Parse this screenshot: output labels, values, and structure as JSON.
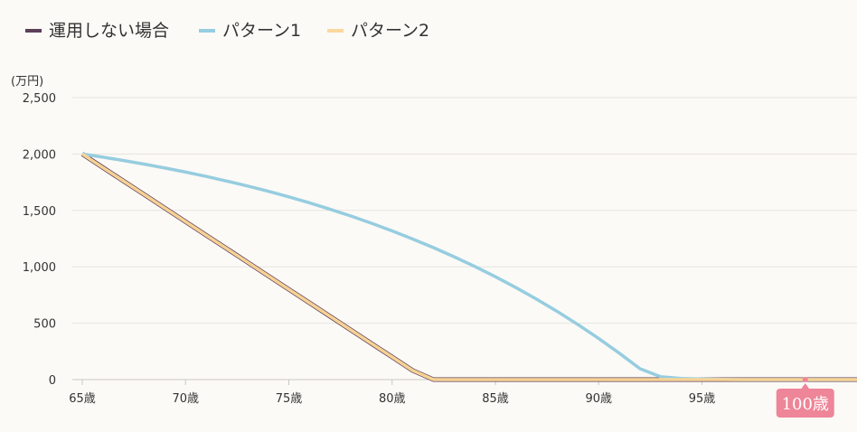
{
  "chart_data": {
    "type": "line",
    "unit_label": "(万円)",
    "x": [
      65,
      66,
      67,
      68,
      69,
      70,
      71,
      72,
      73,
      74,
      75,
      76,
      77,
      78,
      79,
      80,
      81,
      82,
      83,
      84,
      85,
      86,
      87,
      88,
      89,
      90,
      91,
      92,
      93,
      94,
      95,
      96,
      97,
      98,
      99,
      100
    ],
    "x_tick_labels": [
      "65歳",
      "70歳",
      "75歳",
      "80歳",
      "85歳",
      "90歳",
      "95歳"
    ],
    "y_ticks": [
      0,
      500,
      1000,
      1500,
      2000,
      2500
    ],
    "y_tick_labels": [
      "0",
      "500",
      "1,000",
      "1,500",
      "2,000",
      "2,500"
    ],
    "ylim": [
      0,
      2500
    ],
    "grid": true,
    "legend_position": "top-left",
    "series": [
      {
        "name": "運用しない場合",
        "color": "#5c3f58",
        "values": [
          2000,
          1880,
          1760,
          1640,
          1520,
          1400,
          1280,
          1160,
          1040,
          920,
          800,
          680,
          560,
          440,
          320,
          200,
          80,
          0,
          0,
          0,
          0,
          0,
          0,
          0,
          0,
          0,
          0,
          0,
          0,
          0,
          0,
          0,
          0,
          0,
          0,
          0
        ]
      },
      {
        "name": "パターン1",
        "color": "#96cde0",
        "values": [
          2000,
          1972,
          1942,
          1910,
          1876,
          1840,
          1801,
          1760,
          1716,
          1670,
          1620,
          1567,
          1510,
          1450,
          1386,
          1318,
          1246,
          1170,
          1089,
          1003,
          912,
          815,
          712,
          603,
          487,
          364,
          234,
          96,
          25,
          10,
          5,
          2,
          0,
          0,
          0,
          0
        ]
      },
      {
        "name": "パターン2",
        "color": "#fbd89e",
        "values": [
          2000,
          1880,
          1760,
          1640,
          1520,
          1400,
          1280,
          1160,
          1040,
          920,
          800,
          680,
          560,
          440,
          320,
          200,
          80,
          0,
          0,
          0,
          0,
          0,
          0,
          0,
          0,
          0,
          0,
          0,
          0,
          0,
          0,
          0,
          0,
          0,
          0,
          0
        ]
      }
    ],
    "marker": {
      "label": "100歳",
      "x": 100,
      "color": "#ee8598"
    }
  }
}
